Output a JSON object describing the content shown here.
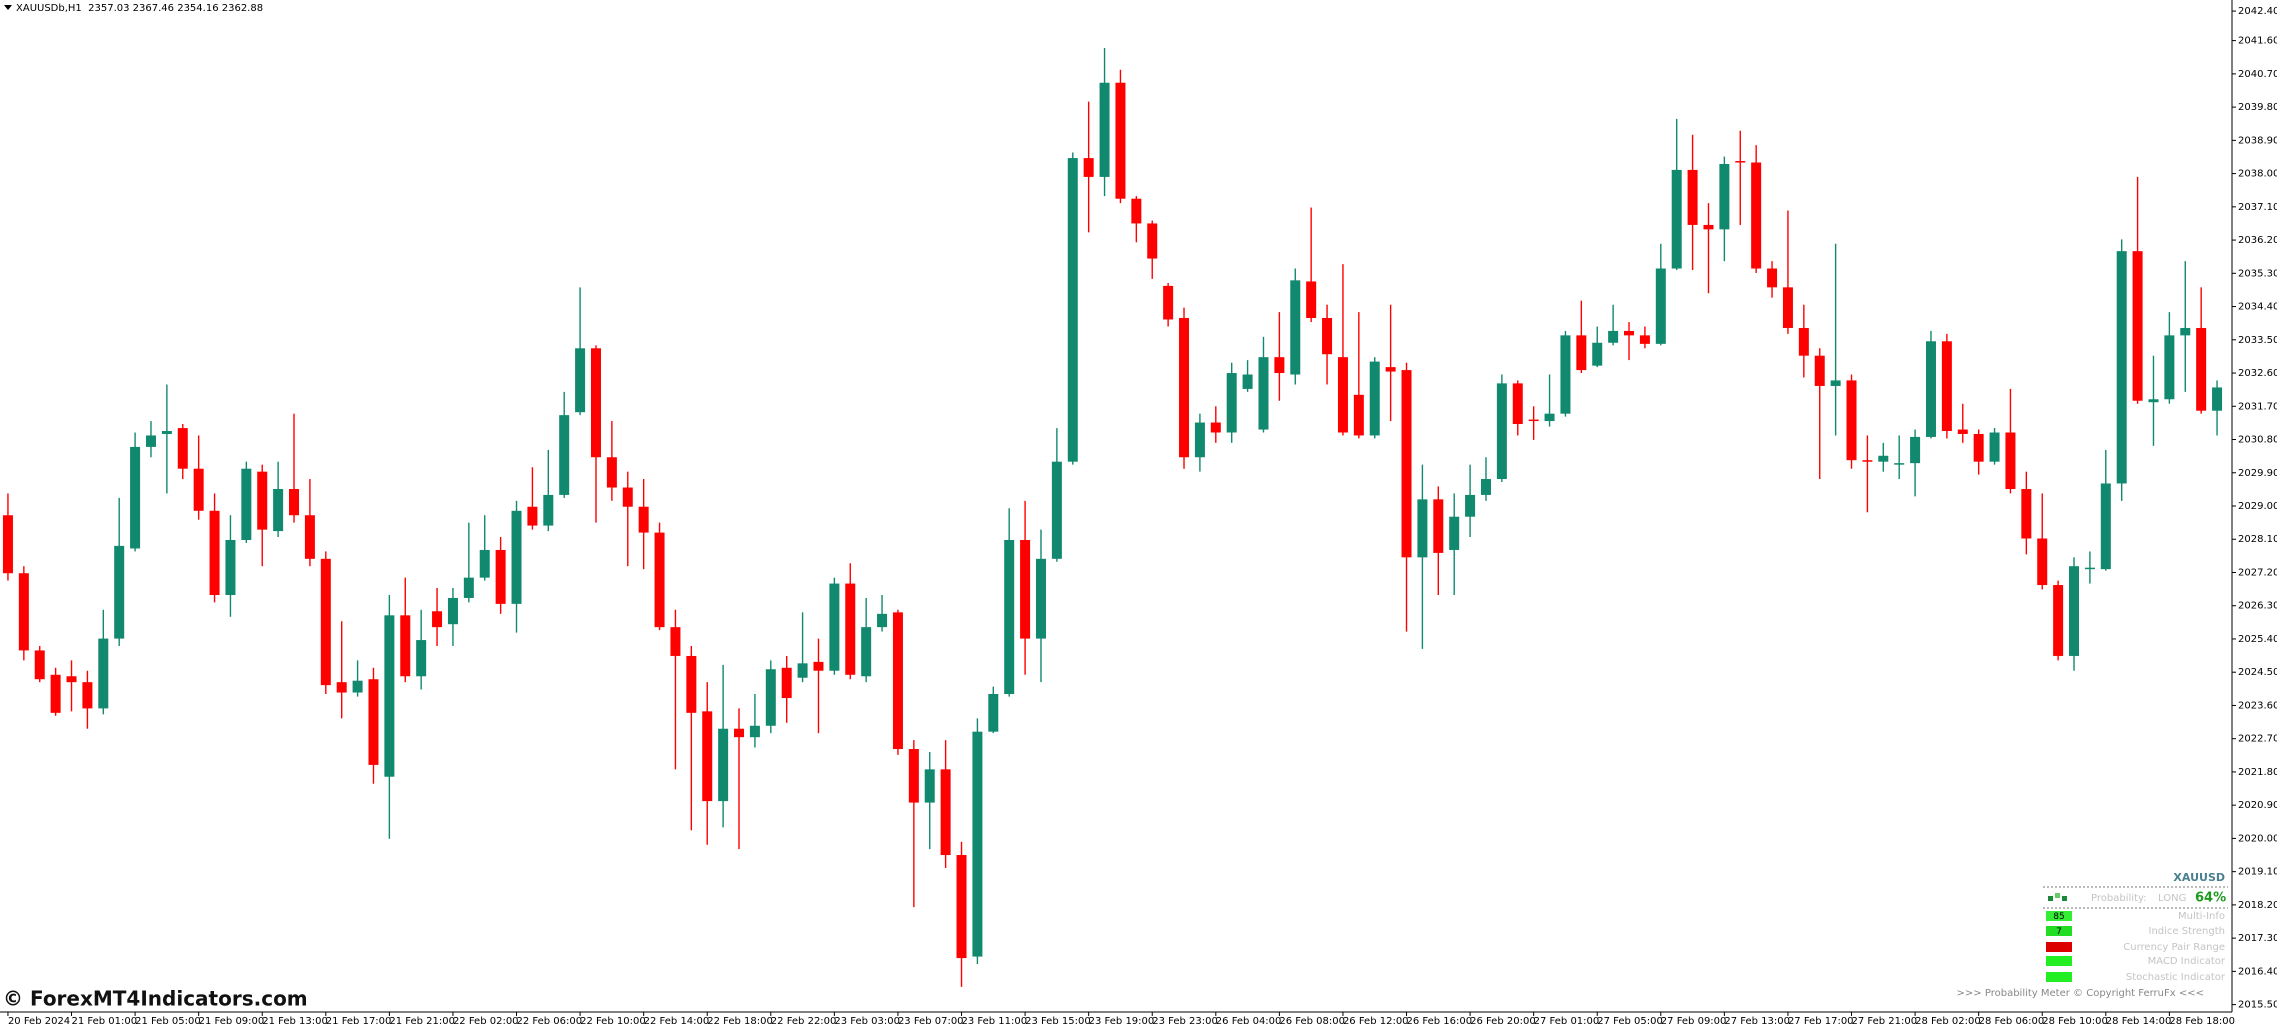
{
  "header": "XAUUSDb,H1  2357.03 2367.46 2354.16 2362.88",
  "watermark": "© ForexMT4Indicators.com",
  "panel": {
    "symbol": "XAUUSD",
    "probability_label": "Probability:",
    "direction": "LONG",
    "probability": "64%",
    "rows": [
      {
        "value": "85",
        "label": "Multi-Info"
      },
      {
        "value": "7",
        "label": "Indice Strength"
      },
      {
        "label": "Currency Pair Range"
      },
      {
        "label": "MACD Indicator"
      },
      {
        "label": "Stochastic Indicator"
      }
    ],
    "footer": ">>> Probability Meter © Copyright FerruFx <<<"
  },
  "chart_data": {
    "type": "candlestick",
    "up_color": "#10896f",
    "down_color": "#ff0000",
    "ylim": [
      2015.3,
      2042.7
    ],
    "yticks": [
      {
        "value": 2042.4,
        "label": "2042.40"
      },
      {
        "value": 2041.6,
        "label": "2041.60"
      },
      {
        "value": 2040.7,
        "label": "2040.70"
      },
      {
        "value": 2039.8,
        "label": "2039.80"
      },
      {
        "value": 2038.9,
        "label": "2038.90"
      },
      {
        "value": 2038.0,
        "label": "2038.00"
      },
      {
        "value": 2037.1,
        "label": "2037.10"
      },
      {
        "value": 2036.2,
        "label": "2036.20"
      },
      {
        "value": 2035.3,
        "label": "2035.30"
      },
      {
        "value": 2034.4,
        "label": "2034.40"
      },
      {
        "value": 2033.5,
        "label": "2033.50"
      },
      {
        "value": 2032.6,
        "label": "2032.60"
      },
      {
        "value": 2031.7,
        "label": "2031.70"
      },
      {
        "value": 2030.8,
        "label": "2030.80"
      },
      {
        "value": 2029.9,
        "label": "2029.90"
      },
      {
        "value": 2029.0,
        "label": "2029.00"
      },
      {
        "value": 2028.1,
        "label": "2028.10"
      },
      {
        "value": 2027.2,
        "label": "2027.20"
      },
      {
        "value": 2026.3,
        "label": "2026.30"
      },
      {
        "value": 2025.4,
        "label": "2025.40"
      },
      {
        "value": 2024.5,
        "label": "2024.50"
      },
      {
        "value": 2023.6,
        "label": "2023.60"
      },
      {
        "value": 2022.7,
        "label": "2022.70"
      },
      {
        "value": 2021.8,
        "label": "2021.80"
      },
      {
        "value": 2020.9,
        "label": "2020.90"
      },
      {
        "value": 2020.0,
        "label": "2020.00"
      },
      {
        "value": 2019.1,
        "label": "2019.10"
      },
      {
        "value": 2018.2,
        "label": "2018.20"
      },
      {
        "value": 2017.3,
        "label": "2017.30"
      },
      {
        "value": 2016.4,
        "label": "2016.40"
      },
      {
        "value": 2015.5,
        "label": "2015.50"
      }
    ],
    "categories": [
      "20 Feb 2024",
      null,
      null,
      null,
      "21 Feb 01:00",
      null,
      null,
      null,
      "21 Feb 05:00",
      null,
      null,
      null,
      "21 Feb 09:00",
      null,
      null,
      null,
      "21 Feb 13:00",
      null,
      null,
      null,
      "21 Feb 17:00",
      null,
      null,
      null,
      "21 Feb 21:00",
      null,
      null,
      null,
      "22 Feb 02:00",
      null,
      null,
      null,
      "22 Feb 06:00",
      null,
      null,
      null,
      "22 Feb 10:00",
      null,
      null,
      null,
      "22 Feb 14:00",
      null,
      null,
      null,
      "22 Feb 18:00",
      null,
      null,
      null,
      "22 Feb 22:00",
      null,
      null,
      null,
      "23 Feb 03:00",
      null,
      null,
      null,
      "23 Feb 07:00",
      null,
      null,
      null,
      "23 Feb 11:00",
      null,
      null,
      null,
      "23 Feb 15:00",
      null,
      null,
      null,
      "23 Feb 19:00",
      null,
      null,
      null,
      "23 Feb 23:00",
      null,
      null,
      null,
      "26 Feb 04:00",
      null,
      null,
      null,
      "26 Feb 08:00",
      null,
      null,
      null,
      "26 Feb 12:00",
      null,
      null,
      null,
      "26 Feb 16:00",
      null,
      null,
      null,
      "26 Feb 20:00",
      null,
      null,
      null,
      "27 Feb 01:00",
      null,
      null,
      null,
      "27 Feb 05:00",
      null,
      null,
      null,
      "27 Feb 09:00",
      null,
      null,
      null,
      "27 Feb 13:00",
      null,
      null,
      null,
      "27 Feb 17:00",
      null,
      null,
      null,
      "27 Feb 21:00",
      null,
      null,
      null,
      "28 Feb 02:00",
      null,
      null,
      null,
      "28 Feb 06:00",
      null,
      null,
      null,
      "28 Feb 10:00",
      null,
      null,
      null,
      "28 Feb 14:00",
      null,
      null,
      null,
      "28 Feb 18:00",
      null,
      null,
      null
    ],
    "open": [
      2028.75,
      2027.18,
      2025.09,
      2024.43,
      2024.39,
      2024.23,
      2023.52,
      2025.41,
      2027.85,
      2030.6,
      2030.95,
      2031.11,
      2030.01,
      2028.87,
      2026.59,
      2028.08,
      2029.93,
      2028.32,
      2029.46,
      2028.75,
      2027.57,
      2024.23,
      2023.95,
      2024.31,
      2021.67,
      2026.04,
      2024.39,
      2026.15,
      2025.8,
      2026.51,
      2027.06,
      2027.81,
      2026.35,
      2028.98,
      2028.47,
      2029.3,
      2031.54,
      2033.27,
      2030.32,
      2029.5,
      2028.98,
      2028.28,
      2025.72,
      2024.94,
      2023.44,
      2021.01,
      2022.97,
      2022.74,
      2023.05,
      2024.62,
      2024.35,
      2024.78,
      2024.54,
      2026.9,
      2024.39,
      2025.72,
      2026.12,
      2022.42,
      2020.97,
      2021.87,
      2019.55,
      2016.8,
      2022.89,
      2023.91,
      2028.08,
      2025.41,
      2027.57,
      2030.2,
      2038.42,
      2037.91,
      2040.46,
      2037.32,
      2036.65,
      2034.96,
      2034.09,
      2030.32,
      2031.26,
      2030.99,
      2032.17,
      2031.07,
      2033.03,
      2032.56,
      2035.08,
      2034.09,
      2033.03,
      2032.01,
      2030.91,
      2032.76,
      2032.68,
      2027.61,
      2029.18,
      2027.81,
      2028.71,
      2029.3,
      2029.73,
      2032.32,
      2031.34,
      2031.3,
      2031.5,
      2033.62,
      2032.8,
      2033.42,
      2033.74,
      2033.62,
      2033.39,
      2035.43,
      2038.1,
      2036.61,
      2036.49,
      2038.34,
      2038.3,
      2035.43,
      2034.92,
      2033.82,
      2033.07,
      2032.25,
      2032.4,
      2030.24,
      2030.2,
      2030.12,
      2030.16,
      2030.87,
      2033.46,
      2031.07,
      2030.95,
      2030.2,
      2030.99,
      2029.46,
      2028.12,
      2026.86,
      2024.94,
      2027.29,
      2027.29,
      2029.61,
      2035.9,
      2031.81,
      2031.89,
      2033.62,
      2033.82,
      2031.58
    ],
    "high": [
      2029.34,
      2027.37,
      2025.21,
      2024.62,
      2024.82,
      2024.54,
      2026.19,
      2029.22,
      2030.99,
      2031.3,
      2032.29,
      2031.22,
      2030.91,
      2029.34,
      2028.75,
      2030.2,
      2030.12,
      2030.2,
      2031.5,
      2029.73,
      2027.77,
      2025.88,
      2024.82,
      2024.62,
      2026.59,
      2027.06,
      2026.19,
      2026.78,
      2026.78,
      2028.55,
      2028.75,
      2028.16,
      2029.14,
      2030.05,
      2030.52,
      2032.09,
      2034.92,
      2033.35,
      2031.3,
      2029.93,
      2029.73,
      2028.55,
      2026.19,
      2025.21,
      2024.23,
      2024.7,
      2023.52,
      2023.91,
      2024.82,
      2024.94,
      2026.12,
      2025.41,
      2027.06,
      2027.45,
      2026.51,
      2026.59,
      2026.19,
      2022.66,
      2022.34,
      2022.66,
      2019.91,
      2023.25,
      2024.11,
      2028.94,
      2029.14,
      2028.36,
      2031.11,
      2038.57,
      2039.95,
      2041.4,
      2040.81,
      2037.39,
      2036.73,
      2035.04,
      2034.37,
      2031.5,
      2031.7,
      2032.88,
      2032.95,
      2033.58,
      2034.25,
      2035.43,
      2037.08,
      2034.45,
      2035.55,
      2034.25,
      2033.03,
      2034.45,
      2032.88,
      2030.12,
      2029.53,
      2029.34,
      2030.12,
      2030.32,
      2032.56,
      2032.4,
      2031.7,
      2032.56,
      2033.74,
      2034.56,
      2033.86,
      2034.45,
      2033.98,
      2033.86,
      2036.1,
      2039.48,
      2039.05,
      2037.2,
      2038.46,
      2039.16,
      2038.77,
      2035.63,
      2037.0,
      2034.45,
      2033.27,
      2036.1,
      2032.56,
      2030.91,
      2030.71,
      2030.91,
      2031.07,
      2033.74,
      2033.66,
      2031.77,
      2031.07,
      2031.11,
      2032.17,
      2029.93,
      2029.34,
      2026.98,
      2027.61,
      2027.77,
      2030.52,
      2036.22,
      2037.91,
      2033.07,
      2034.25,
      2035.63,
      2034.92,
      2032.4
    ],
    "low": [
      2026.98,
      2024.82,
      2024.23,
      2023.32,
      2023.44,
      2022.97,
      2023.36,
      2025.21,
      2027.77,
      2030.32,
      2029.34,
      2029.73,
      2028.63,
      2026.39,
      2026.0,
      2028.0,
      2027.37,
      2028.16,
      2028.55,
      2027.37,
      2023.91,
      2023.25,
      2023.84,
      2021.48,
      2019.99,
      2024.23,
      2024.03,
      2025.21,
      2025.21,
      2026.39,
      2026.98,
      2026.08,
      2025.57,
      2028.36,
      2028.32,
      2029.22,
      2031.46,
      2028.55,
      2029.14,
      2027.37,
      2027.29,
      2025.64,
      2021.87,
      2020.22,
      2019.83,
      2020.3,
      2019.71,
      2022.46,
      2022.85,
      2023.13,
      2024.23,
      2022.85,
      2024.43,
      2024.31,
      2024.23,
      2025.6,
      2022.26,
      2018.14,
      2019.71,
      2019.2,
      2015.98,
      2016.6,
      2022.85,
      2023.84,
      2024.43,
      2024.23,
      2027.49,
      2030.12,
      2036.41,
      2037.39,
      2037.2,
      2036.14,
      2035.15,
      2033.86,
      2030.01,
      2029.93,
      2030.71,
      2030.71,
      2032.09,
      2030.99,
      2031.85,
      2032.29,
      2033.98,
      2032.29,
      2030.91,
      2030.83,
      2030.83,
      2031.3,
      2025.6,
      2025.13,
      2026.59,
      2026.59,
      2028.16,
      2029.14,
      2029.65,
      2030.91,
      2030.79,
      2031.15,
      2031.42,
      2032.6,
      2032.76,
      2033.35,
      2032.95,
      2033.27,
      2033.35,
      2035.39,
      2035.39,
      2034.76,
      2035.63,
      2036.61,
      2035.31,
      2034.64,
      2033.66,
      2032.48,
      2029.73,
      2030.91,
      2030.01,
      2028.83,
      2029.93,
      2029.73,
      2029.26,
      2030.83,
      2030.83,
      2030.71,
      2029.85,
      2030.12,
      2029.34,
      2027.69,
      2026.74,
      2024.82,
      2024.54,
      2026.9,
      2027.25,
      2029.14,
      2031.77,
      2030.63,
      2031.77,
      2032.09,
      2031.5,
      2030.91
    ],
    "close": [
      2027.18,
      2025.09,
      2024.31,
      2023.4,
      2024.23,
      2023.52,
      2025.41,
      2027.92,
      2030.6,
      2030.91,
      2031.03,
      2030.01,
      2028.87,
      2026.59,
      2028.08,
      2030.01,
      2028.36,
      2029.46,
      2028.75,
      2027.57,
      2024.15,
      2023.95,
      2024.27,
      2021.99,
      2026.04,
      2024.39,
      2025.37,
      2025.72,
      2026.51,
      2027.06,
      2027.81,
      2026.35,
      2028.87,
      2028.47,
      2029.3,
      2031.46,
      2033.27,
      2030.32,
      2029.5,
      2028.98,
      2028.28,
      2025.72,
      2024.94,
      2023.4,
      2021.01,
      2022.97,
      2022.74,
      2023.05,
      2024.58,
      2023.8,
      2024.74,
      2024.54,
      2026.9,
      2024.43,
      2025.72,
      2026.08,
      2022.42,
      2020.97,
      2021.87,
      2019.55,
      2016.76,
      2022.89,
      2023.91,
      2028.08,
      2025.41,
      2027.57,
      2030.2,
      2038.42,
      2037.91,
      2040.46,
      2037.32,
      2036.65,
      2035.7,
      2034.05,
      2030.32,
      2031.26,
      2030.99,
      2032.6,
      2032.56,
      2033.03,
      2032.6,
      2035.11,
      2034.09,
      2033.11,
      2030.99,
      2030.91,
      2032.91,
      2032.64,
      2027.61,
      2029.18,
      2027.73,
      2028.71,
      2029.3,
      2029.73,
      2032.32,
      2031.22,
      2031.3,
      2031.5,
      2033.62,
      2032.68,
      2033.42,
      2033.74,
      2033.62,
      2033.39,
      2035.43,
      2038.1,
      2036.61,
      2036.49,
      2038.26,
      2038.3,
      2035.43,
      2034.92,
      2033.82,
      2033.07,
      2032.25,
      2032.4,
      2030.24,
      2030.2,
      2030.36,
      2030.16,
      2030.87,
      2033.46,
      2031.03,
      2030.95,
      2030.2,
      2030.99,
      2029.46,
      2028.12,
      2026.86,
      2024.94,
      2027.37,
      2027.33,
      2029.61,
      2035.9,
      2031.85,
      2031.89,
      2033.62,
      2033.82,
      2031.58,
      2032.21
    ]
  }
}
